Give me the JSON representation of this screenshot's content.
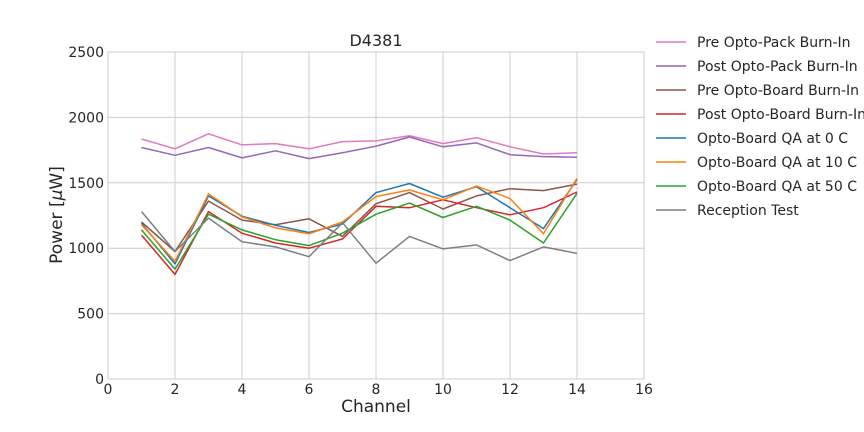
{
  "chart_data": {
    "type": "line",
    "title": "D4381",
    "xlabel": "Channel",
    "ylabel_prefix": "Power [",
    "ylabel_mu": "μ",
    "ylabel_suffix": "W]",
    "xlim": [
      0,
      16
    ],
    "ylim": [
      0,
      2500
    ],
    "xticks": [
      0,
      2,
      4,
      6,
      8,
      10,
      12,
      14,
      16
    ],
    "yticks": [
      0,
      500,
      1000,
      1500,
      2000,
      2500
    ],
    "grid": true,
    "legend_position": "outside-right",
    "x": [
      1,
      2,
      3,
      4,
      5,
      6,
      7,
      8,
      9,
      10,
      11,
      12,
      13,
      14
    ],
    "series": [
      {
        "name": "Pre Opto-Pack Burn-In",
        "color": "#e377c2",
        "values": [
          1835,
          1760,
          1875,
          1790,
          1800,
          1760,
          1815,
          1820,
          1860,
          1800,
          1845,
          1775,
          1720,
          1730
        ]
      },
      {
        "name": "Post Opto-Pack Burn-In",
        "color": "#9467bd",
        "values": [
          1770,
          1710,
          1770,
          1690,
          1745,
          1685,
          1730,
          1780,
          1850,
          1775,
          1805,
          1715,
          1700,
          1695
        ]
      },
      {
        "name": "Pre Opto-Board Burn-In",
        "color": "#8c564b",
        "values": [
          1200,
          975,
          1360,
          1215,
          1180,
          1225,
          1090,
          1340,
          1425,
          1300,
          1400,
          1455,
          1440,
          1490
        ]
      },
      {
        "name": "Post Opto-Board Burn-In",
        "color": "#d62728",
        "values": [
          1100,
          800,
          1280,
          1115,
          1040,
          1000,
          1070,
          1320,
          1310,
          1370,
          1310,
          1255,
          1310,
          1430
        ]
      },
      {
        "name": "Opto-Board QA at 0 C",
        "color": "#1f77b4",
        "values": [
          1190,
          880,
          1400,
          1245,
          1175,
          1120,
          1185,
          1425,
          1495,
          1390,
          1470,
          1310,
          1150,
          1525
        ]
      },
      {
        "name": "Opto-Board QA at 10 C",
        "color": "#ff7f0e",
        "values": [
          1180,
          900,
          1415,
          1240,
          1155,
          1110,
          1200,
          1395,
          1445,
          1370,
          1475,
          1380,
          1110,
          1535
        ]
      },
      {
        "name": "Opto-Board QA at 50 C",
        "color": "#2ca02c",
        "values": [
          1140,
          840,
          1260,
          1140,
          1065,
          1020,
          1115,
          1260,
          1345,
          1235,
          1320,
          1215,
          1040,
          1420
        ]
      },
      {
        "name": "Reception Test",
        "color": "#7f7f7f",
        "values": [
          1280,
          975,
          1230,
          1050,
          1010,
          935,
          1195,
          885,
          1090,
          995,
          1025,
          905,
          1010,
          960
        ]
      }
    ]
  }
}
